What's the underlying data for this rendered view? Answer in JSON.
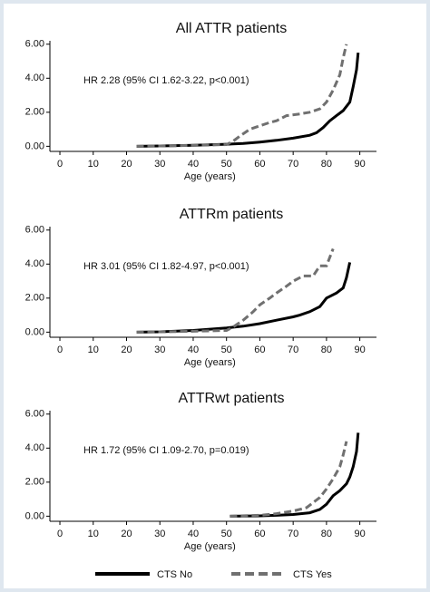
{
  "chart_data": [
    {
      "type": "line",
      "title": "All ATTR patients",
      "x_label": "Age (years)",
      "annotation": "HR 2.28 (95% CI 1.62-3.22, p<0.001)",
      "xlim": [
        -3,
        95
      ],
      "xticks": [
        0,
        10,
        20,
        30,
        40,
        50,
        60,
        70,
        80,
        90
      ],
      "ylim": [
        -0.3,
        6.2
      ],
      "yticks": [
        {
          "value": 0,
          "label": "0.00"
        },
        {
          "value": 2,
          "label": "2.00"
        },
        {
          "value": 4,
          "label": "4.00"
        },
        {
          "value": 6,
          "label": "6.00"
        }
      ],
      "series": [
        {
          "name": "CTS No",
          "color": "#000000",
          "linestyle": "solid",
          "x": [
            23,
            30,
            40,
            50,
            55,
            60,
            65,
            70,
            75,
            77,
            79,
            81,
            83,
            85,
            87,
            88,
            89,
            89.5
          ],
          "values": [
            0,
            0.02,
            0.06,
            0.12,
            0.17,
            0.25,
            0.35,
            0.48,
            0.65,
            0.8,
            1.1,
            1.5,
            1.8,
            2.1,
            2.6,
            3.5,
            4.5,
            5.5
          ]
        },
        {
          "name": "CTS Yes",
          "color": "#707070",
          "linestyle": "dashed",
          "x": [
            23,
            40,
            50,
            52,
            54,
            57,
            60,
            63,
            65,
            68,
            72,
            75,
            78,
            80,
            82,
            84,
            85,
            86
          ],
          "values": [
            0,
            0.05,
            0.1,
            0.3,
            0.6,
            1.0,
            1.2,
            1.4,
            1.5,
            1.8,
            1.9,
            2.0,
            2.2,
            2.6,
            3.3,
            4.2,
            5.2,
            6.0
          ]
        }
      ]
    },
    {
      "type": "line",
      "title": "ATTRm patients",
      "x_label": "Age (years)",
      "annotation": "HR 3.01 (95% CI 1.82-4.97, p<0.001)",
      "xlim": [
        -3,
        95
      ],
      "xticks": [
        0,
        10,
        20,
        30,
        40,
        50,
        60,
        70,
        80,
        90
      ],
      "ylim": [
        -0.3,
        6.2
      ],
      "yticks": [
        {
          "value": 0,
          "label": "0.00"
        },
        {
          "value": 2,
          "label": "2.00"
        },
        {
          "value": 4,
          "label": "4.00"
        },
        {
          "value": 6,
          "label": "6.00"
        }
      ],
      "series": [
        {
          "name": "CTS No",
          "color": "#000000",
          "linestyle": "solid",
          "x": [
            23,
            30,
            40,
            50,
            55,
            60,
            65,
            70,
            72,
            75,
            78,
            80,
            83,
            85,
            86,
            87
          ],
          "values": [
            0,
            0.02,
            0.1,
            0.25,
            0.35,
            0.5,
            0.7,
            0.9,
            1.0,
            1.2,
            1.5,
            2.0,
            2.3,
            2.6,
            3.2,
            4.1
          ]
        },
        {
          "name": "CTS Yes",
          "color": "#707070",
          "linestyle": "dashed",
          "x": [
            23,
            40,
            50,
            52,
            55,
            58,
            60,
            63,
            65,
            68,
            70,
            73,
            76,
            78,
            80,
            82
          ],
          "values": [
            0,
            0.05,
            0.1,
            0.3,
            0.7,
            1.2,
            1.6,
            2.0,
            2.3,
            2.7,
            3.0,
            3.3,
            3.3,
            3.9,
            3.9,
            4.9
          ]
        }
      ]
    },
    {
      "type": "line",
      "title": "ATTRwt patients",
      "x_label": "Age (years)",
      "annotation": "HR 1.72 (95% CI 1.09-2.70, p=0.019)",
      "xlim": [
        -3,
        95
      ],
      "xticks": [
        0,
        10,
        20,
        30,
        40,
        50,
        60,
        70,
        80,
        90
      ],
      "ylim": [
        -0.3,
        6.2
      ],
      "yticks": [
        {
          "value": 0,
          "label": "0.00"
        },
        {
          "value": 2,
          "label": "2.00"
        },
        {
          "value": 4,
          "label": "4.00"
        },
        {
          "value": 6,
          "label": "6.00"
        }
      ],
      "series": [
        {
          "name": "CTS No",
          "color": "#000000",
          "linestyle": "solid",
          "x": [
            51,
            60,
            65,
            70,
            75,
            78,
            80,
            82,
            84,
            86,
            87,
            88,
            89,
            89.5
          ],
          "values": [
            0,
            0.02,
            0.05,
            0.1,
            0.2,
            0.4,
            0.7,
            1.2,
            1.5,
            1.9,
            2.3,
            2.9,
            3.8,
            4.9
          ]
        },
        {
          "name": "CTS Yes",
          "color": "#707070",
          "linestyle": "dashed",
          "x": [
            51,
            60,
            65,
            70,
            74,
            76,
            78,
            80,
            82,
            84,
            85,
            86
          ],
          "values": [
            0,
            0.05,
            0.15,
            0.3,
            0.5,
            0.8,
            1.1,
            1.6,
            2.2,
            2.9,
            3.6,
            4.4
          ]
        }
      ]
    }
  ]
}
